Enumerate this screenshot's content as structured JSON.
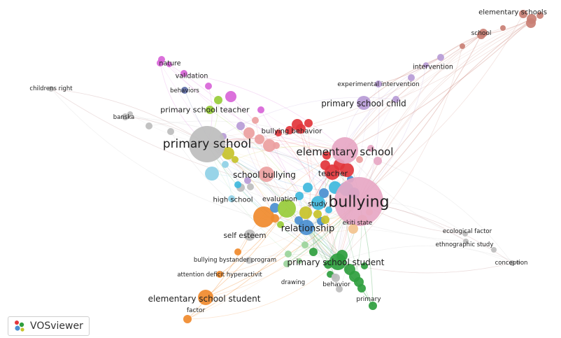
{
  "app": {
    "name": "VOSviewer"
  },
  "clusters": {
    "red": "#e2353b",
    "pink": "#e7a7c4",
    "salmon": "#ec9f9f",
    "gray": "#bdbdbd",
    "purple": "#b79bd6",
    "magenta": "#d865d8",
    "brown": "#c97f74",
    "cyan": "#3fb8dd",
    "sky": "#8fd0e6",
    "blue": "#4a8fd0",
    "olive": "#c7c22a",
    "lime": "#98cc3a",
    "green": "#2f9e3e",
    "lightgreen": "#9ad49a",
    "orange": "#f08a2c",
    "peach": "#f3c38f",
    "navy": "#5f6ea8"
  },
  "icons": {
    "brand": "vosviewer-logo-icon"
  },
  "labels": [
    {
      "id": "bullying",
      "text": "bullying",
      "size": 22
    },
    {
      "id": "primary-school",
      "text": "primary school",
      "size": 17
    },
    {
      "id": "elementary-school",
      "text": "elementary school",
      "size": 15
    },
    {
      "id": "relationship",
      "text": "relationship",
      "size": 13
    },
    {
      "id": "primary-school-student",
      "text": "primary school student",
      "size": 12
    },
    {
      "id": "elementary-school-student",
      "text": "elementary school student",
      "size": 12
    },
    {
      "id": "school-bullying",
      "text": "school bullying",
      "size": 12
    },
    {
      "id": "primary-school-child",
      "text": "primary school child",
      "size": 12
    },
    {
      "id": "primary-school-teacher",
      "text": "primary school teacher",
      "size": 11
    },
    {
      "id": "teacher",
      "text": "teacher",
      "size": 11
    },
    {
      "id": "self-esteem",
      "text": "self esteem",
      "size": 10.5
    },
    {
      "id": "high-school",
      "text": "high school",
      "size": 10
    },
    {
      "id": "study",
      "text": "study",
      "size": 10
    },
    {
      "id": "evaluation",
      "text": "evaluation",
      "size": 9.5
    },
    {
      "id": "bullying-behavior",
      "text": "bullying behavior",
      "size": 10
    },
    {
      "id": "elementary-schools",
      "text": "elementary schools",
      "size": 10
    },
    {
      "id": "school",
      "text": "school",
      "size": 9
    },
    {
      "id": "intervention",
      "text": "intervention",
      "size": 9.5
    },
    {
      "id": "experimental-intervention",
      "text": "experimental intervention",
      "size": 9
    },
    {
      "id": "childrens-right",
      "text": "childrens right",
      "size": 8.5
    },
    {
      "id": "banska",
      "text": "banska",
      "size": 8.5
    },
    {
      "id": "nature",
      "text": "nature",
      "size": 9.5
    },
    {
      "id": "validation",
      "text": "validation",
      "size": 9.5
    },
    {
      "id": "behaviors",
      "text": "behaviors",
      "size": 8.5
    },
    {
      "id": "ekiti-state",
      "text": "ekiti state",
      "size": 8.5
    },
    {
      "id": "ecological-factor",
      "text": "ecological factor",
      "size": 8.5
    },
    {
      "id": "ethnographic-study",
      "text": "ethnographic study",
      "size": 8.5
    },
    {
      "id": "conception",
      "text": "conception",
      "size": 8.5
    },
    {
      "id": "bullying-bystander-program",
      "text": "bullying bystander program",
      "size": 8.5
    },
    {
      "id": "attention-deficit-hyperactivit",
      "text": "attention deficit hyperactivit",
      "size": 8.5
    },
    {
      "id": "drawing",
      "text": "drawing",
      "size": 8.5
    },
    {
      "id": "behavior",
      "text": "behavior",
      "size": 9
    },
    {
      "id": "primary",
      "text": "primary",
      "size": 9
    },
    {
      "id": "factor",
      "text": "factor",
      "size": 9
    }
  ]
}
